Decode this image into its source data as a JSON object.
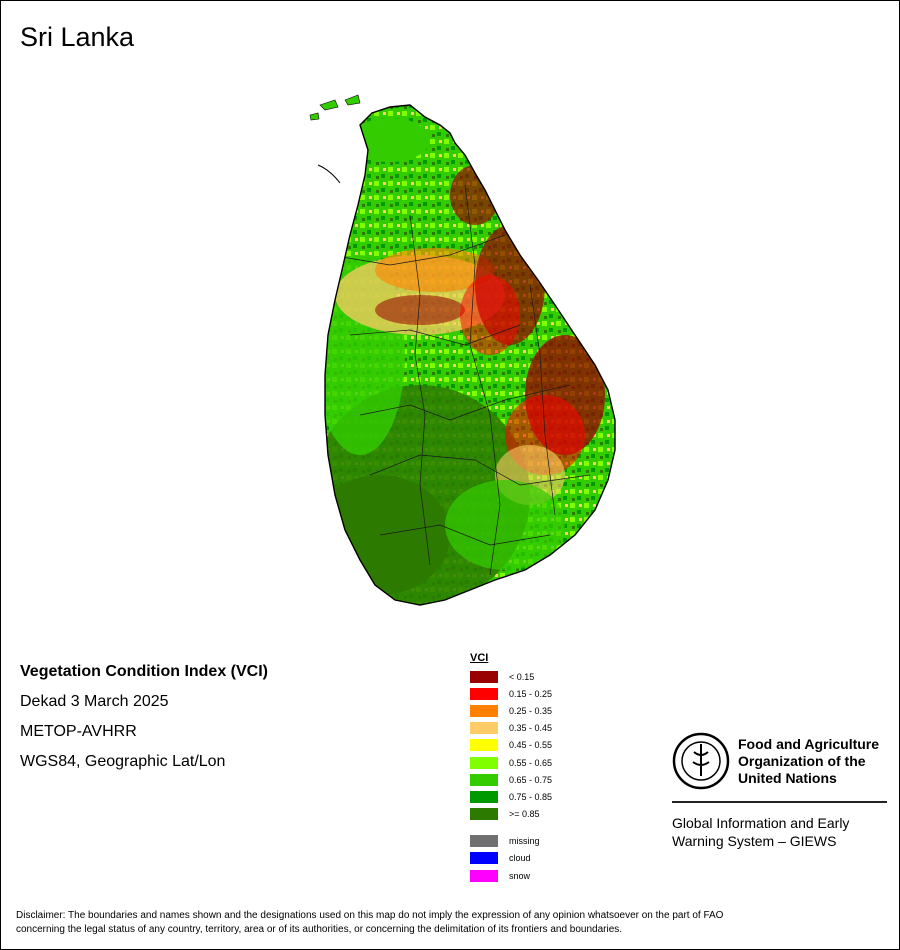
{
  "title": "Sri Lanka",
  "info": {
    "index_name": "Vegetation Condition Index (VCI)",
    "period": "Dekad 3 March 2025",
    "sensor": "METOP-AVHRR",
    "projection": "WGS84, Geographic Lat/Lon"
  },
  "legend": {
    "title": "VCI",
    "classes": [
      {
        "label": "< 0.15",
        "color": "#990000"
      },
      {
        "label": "0.15 - 0.25",
        "color": "#ff0000"
      },
      {
        "label": "0.25 - 0.35",
        "color": "#ff8000"
      },
      {
        "label": "0.35 - 0.45",
        "color": "#ffcc66"
      },
      {
        "label": "0.45 - 0.55",
        "color": "#ffff00"
      },
      {
        "label": "0.55 - 0.65",
        "color": "#80ff00"
      },
      {
        "label": "0.65 - 0.75",
        "color": "#33cc00"
      },
      {
        "label": "0.75 - 0.85",
        "color": "#009900"
      },
      {
        "label": ">= 0.85",
        "color": "#2d7a00"
      }
    ],
    "extra": [
      {
        "label": "missing",
        "color": "#707070"
      },
      {
        "label": "cloud",
        "color": "#0000ff"
      },
      {
        "label": "snow",
        "color": "#ff00ff"
      }
    ]
  },
  "org": {
    "name_line1": "Food and Agriculture",
    "name_line2": "Organization of the",
    "name_line3": "United Nations",
    "system_line1": "Global Information and Early",
    "system_line2": "Warning System – GIEWS"
  },
  "disclaimer": {
    "line1": "Disclaimer: The boundaries and names shown and the designations used on this map do not imply the expression of any opinion whatsoever on the part of FAO",
    "line2": "concerning the legal status of any country, territory, area or of its authorities, or concerning the delimitation of its frontiers and boundaries."
  }
}
